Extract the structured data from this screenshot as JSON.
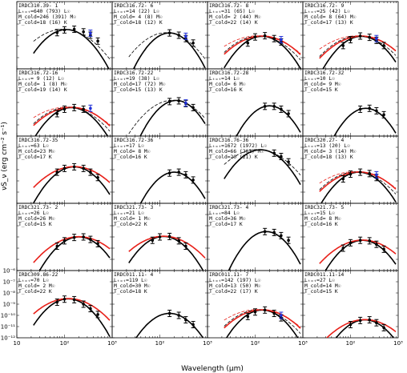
{
  "chart_data": {
    "type": "scatter",
    "layout": "panel-grid",
    "rows": 5,
    "cols": 4,
    "xlabel": "Wavelength (μm)",
    "ylabel": "νS_ν (erg cm⁻² s⁻¹)",
    "xscale": "log",
    "yscale": "log",
    "xlim": [
      10,
      1000
    ],
    "ylim": [
      1e-12,
      1e-06
    ],
    "x_tick_labels": [
      "10",
      "10²",
      "10³"
    ],
    "y_tick_labels": [
      "10⁻⁶",
      "10⁻⁷",
      "10⁻⁸",
      "10⁻⁹",
      "10⁻¹⁰",
      "10⁻¹¹",
      "10⁻¹²"
    ],
    "colors": {
      "cold_fit": "#000000",
      "total_fit": "#e8211a",
      "blue_point": "#1f2fd8",
      "data_point": "#000000"
    },
    "panels": [
      {
        "name": "IRDC310.39- 1",
        "lines": [
          "Lₜₒₜ=640 (793) L☉",
          "M_cold=246 (391) M☉",
          "T_cold=18 (16) K"
        ],
        "peak": [
          110,
          3.2e-09
        ],
        "width": 0.45,
        "red": false,
        "dashed": true,
        "points": [
          [
            70,
            1.7e-09
          ],
          [
            100,
            3e-09
          ],
          [
            160,
            3.4e-09
          ],
          [
            250,
            2e-09
          ],
          [
            350,
            1e-09
          ],
          [
            500,
            3e-10
          ]
        ],
        "blue": [
          [
            350,
            1.5e-09
          ]
        ]
      },
      {
        "name": "IRDC316.72- 6",
        "lines": [
          "Lₜₒₜ=14 (22) L☉",
          "M_cold= 4 (8) M☉",
          "T_cold=18 (12) K"
        ],
        "peak": [
          160,
          1.6e-09
        ],
        "width": 0.4,
        "red": false,
        "dashed": true,
        "points": [
          [
            160,
            1.6e-09
          ],
          [
            250,
            1e-09
          ],
          [
            350,
            5e-10
          ],
          [
            500,
            2e-10
          ]
        ],
        "blue": [
          [
            350,
            8e-10
          ]
        ]
      },
      {
        "name": "IRDC316.72- 8",
        "lines": [
          "Lₜₒₜ=31 (65) L☉",
          "M_cold= 2 (44) M☉",
          "T_cold=22 (14) K"
        ],
        "peak": [
          140,
          8e-10
        ],
        "width": 0.45,
        "red": true,
        "dashed": true,
        "points": [
          [
            70,
            2e-10
          ],
          [
            100,
            7e-10
          ],
          [
            160,
            9e-10
          ],
          [
            250,
            5e-10
          ],
          [
            350,
            2.5e-10
          ]
        ],
        "blue": [
          [
            350,
            4e-10
          ]
        ]
      },
      {
        "name": "IRDC316.72- 9",
        "lines": [
          "Lₜₒₜ=25 (42) L☉",
          "M_cold= 8 (64) M☉",
          "T_cold=17 (13) K"
        ],
        "peak": [
          170,
          8e-10
        ],
        "width": 0.45,
        "red": true,
        "dashed": true,
        "points": [
          [
            70,
            1.2e-10
          ],
          [
            100,
            4e-10
          ],
          [
            160,
            8.5e-10
          ],
          [
            250,
            6.5e-10
          ],
          [
            350,
            3.5e-10
          ],
          [
            500,
            1.2e-10
          ]
        ],
        "blue": [
          [
            350,
            5e-10
          ]
        ]
      },
      {
        "name": "IRDC316.72-16",
        "lines": [
          "Lₜₒₜ= 9 (12) L☉",
          "M_cold= 1 (8) M☉",
          "T_cold=19 (14) K"
        ],
        "peak": [
          140,
          3.5e-10
        ],
        "width": 0.45,
        "red": true,
        "dashed": true,
        "points": [
          [
            70,
            1e-10
          ],
          [
            100,
            2.5e-10
          ],
          [
            160,
            3.5e-10
          ],
          [
            250,
            2.5e-10
          ]
        ],
        "blue": [
          [
            350,
            3e-10
          ]
        ]
      },
      {
        "name": "IRDC316.72-22",
        "lines": [
          "Lₜₒₜ=19 (38) L☉",
          "M_cold=17 (72) M☉",
          "T_cold=15 (13) K"
        ],
        "peak": [
          220,
          1.5e-09
        ],
        "width": 0.4,
        "red": false,
        "dashed": true,
        "points": [
          [
            160,
            1.2e-09
          ],
          [
            250,
            1.4e-09
          ],
          [
            350,
            8e-10
          ],
          [
            500,
            3.5e-10
          ]
        ],
        "blue": [
          [
            350,
            9e-10
          ]
        ]
      },
      {
        "name": "IRDC316.72-28",
        "lines": [
          "Lₜₒₜ=14 L☉",
          "M_cold= 6 M☉",
          "T_cold=16 K"
        ],
        "peak": [
          200,
          5e-10
        ],
        "width": 0.4,
        "red": false,
        "dashed": false,
        "points": [
          [
            160,
            4.5e-10
          ],
          [
            250,
            4.5e-10
          ],
          [
            350,
            2.5e-10
          ],
          [
            500,
            1e-10
          ]
        ],
        "blue": []
      },
      {
        "name": "IRDC316.72-32",
        "lines": [
          "Lₜₒₜ=10 L☉",
          "M_cold= 9 M☉",
          "T_cold=15 K"
        ],
        "peak": [
          210,
          3e-10
        ],
        "width": 0.4,
        "red": false,
        "dashed": false,
        "points": [
          [
            160,
            2.5e-10
          ],
          [
            250,
            3e-10
          ],
          [
            350,
            1.8e-10
          ],
          [
            500,
            8e-11
          ]
        ],
        "blue": []
      },
      {
        "name": "IRDC316.72-35",
        "lines": [
          "Lₜₒₜ=63 L☉",
          "M_cold=23 M☉",
          "T_cold=17 K"
        ],
        "peak": [
          160,
          1.8e-09
        ],
        "width": 0.45,
        "red": true,
        "dashed": false,
        "points": [
          [
            70,
            6e-10
          ],
          [
            100,
            1.3e-09
          ],
          [
            160,
            1.8e-09
          ],
          [
            250,
            1.3e-09
          ],
          [
            350,
            6e-10
          ],
          [
            500,
            2e-10
          ]
        ],
        "blue": []
      },
      {
        "name": "IRDC316.72-36",
        "lines": [
          "Lₜₒₜ=17 L☉",
          "M_cold= 8 M☉",
          "T_cold=16 K"
        ],
        "peak": [
          200,
          6e-10
        ],
        "width": 0.4,
        "red": false,
        "dashed": false,
        "points": [
          [
            160,
            5e-10
          ],
          [
            250,
            6e-10
          ],
          [
            350,
            3.5e-10
          ],
          [
            500,
            1.2e-10
          ]
        ],
        "blue": []
      },
      {
        "name": "IRDC316.76-36",
        "lines": [
          "Lₜₒₜ=1672 (1972) L☉",
          "M_cold=66 (201) M☉",
          "T_cold=20 (21) K"
        ],
        "peak": [
          130,
          6e-08
        ],
        "width": 0.45,
        "red": false,
        "dashed": true,
        "points": [
          [
            250,
            3e-08
          ],
          [
            350,
            1.5e-08
          ],
          [
            500,
            5e-09
          ]
        ],
        "blue": []
      },
      {
        "name": "IRDC320.27- 4",
        "lines": [
          "Lₜₒₜ=13 (20) L☉",
          "M_cold= 3 (14) M☉",
          "T_cold=18 (13) K"
        ],
        "peak": [
          150,
          6e-10
        ],
        "width": 0.45,
        "red": true,
        "dashed": true,
        "points": [
          [
            70,
            1.5e-10
          ],
          [
            100,
            4e-10
          ],
          [
            160,
            6e-10
          ],
          [
            250,
            4.5e-10
          ],
          [
            350,
            2e-10
          ]
        ],
        "blue": [
          [
            350,
            3.5e-10
          ]
        ]
      },
      {
        "name": "IRDC321.73- 2",
        "lines": [
          "Lₜₒₜ=26 L☉",
          "M_cold=26 M☉",
          "T_cold=15 K"
        ],
        "peak": [
          200,
          1e-09
        ],
        "width": 0.45,
        "red": true,
        "dashed": false,
        "points": [
          [
            70,
            1.5e-10
          ],
          [
            100,
            4.5e-10
          ],
          [
            160,
            9e-10
          ],
          [
            250,
            1e-09
          ],
          [
            350,
            6e-10
          ],
          [
            500,
            2.5e-10
          ]
        ],
        "blue": []
      },
      {
        "name": "IRDC321.73- 3",
        "lines": [
          "Lₜₒₜ=21 L☉",
          "M_cold= 1 M☉",
          "T_cold=22 K"
        ],
        "peak": [
          120,
          1.1e-09
        ],
        "width": 0.45,
        "red": true,
        "dashed": false,
        "points": [
          [
            70,
            5e-10
          ],
          [
            100,
            1e-09
          ],
          [
            160,
            1.1e-09
          ],
          [
            250,
            4.5e-10
          ],
          [
            350,
            1.5e-10
          ]
        ],
        "blue": []
      },
      {
        "name": "IRDC321.73- 4",
        "lines": [
          "Lₜₒₜ=84 L☉",
          "M_cold=36 M☉",
          "T_cold=17 K"
        ],
        "peak": [
          170,
          3e-09
        ],
        "width": 0.4,
        "red": false,
        "dashed": false,
        "points": [
          [
            160,
            3e-09
          ],
          [
            250,
            2.5e-09
          ],
          [
            350,
            1.3e-09
          ],
          [
            500,
            5e-10
          ]
        ],
        "blue": []
      },
      {
        "name": "IRDC321.73- 5",
        "lines": [
          "Lₜₒₜ=15 L☉",
          "M_cold= 8 M☉",
          "T_cold=16 K"
        ],
        "peak": [
          180,
          5e-10
        ],
        "width": 0.45,
        "red": true,
        "dashed": false,
        "points": [
          [
            70,
            1e-10
          ],
          [
            100,
            3e-10
          ],
          [
            160,
            5e-10
          ],
          [
            250,
            4.5e-10
          ],
          [
            350,
            2.2e-10
          ],
          [
            500,
            8e-11
          ]
        ],
        "blue": []
      },
      {
        "name": "IRDC309.86-22",
        "lines": [
          "Lₜₒₜ=70 L☉",
          "M_cold= 2 M☉",
          "T_cold=22 K"
        ],
        "peak": [
          120,
          3e-09
        ],
        "width": 0.45,
        "red": true,
        "dashed": false,
        "points": [
          [
            70,
            1.5e-09
          ],
          [
            100,
            2.8e-09
          ],
          [
            160,
            2.5e-09
          ],
          [
            250,
            1e-09
          ],
          [
            350,
            4e-10
          ],
          [
            500,
            1.2e-10
          ]
        ],
        "blue": []
      },
      {
        "name": "IRDC011.11- 4",
        "lines": [
          "Lₜₒₜ=119 L☉",
          "M_cold=30 M☉",
          "T_cold=18 K"
        ],
        "peak": [
          160,
          1.5e-10
        ],
        "width": 0.45,
        "red": false,
        "dashed": false,
        "points": [
          [
            160,
            1.5e-10
          ],
          [
            250,
            1e-10
          ],
          [
            350,
            4e-11
          ],
          [
            500,
            1.5e-11
          ]
        ],
        "blue": []
      },
      {
        "name": "IRDC011.11- 7",
        "lines": [
          "Lₜₒₜ=142 (197) L☉",
          "M_cold=13 (50) M☉",
          "T_cold=22 (17) K"
        ],
        "peak": [
          140,
          3e-10
        ],
        "width": 0.45,
        "red": true,
        "dashed": true,
        "points": [
          [
            70,
            8e-11
          ],
          [
            100,
            2e-10
          ],
          [
            160,
            3e-10
          ],
          [
            250,
            1.5e-10
          ],
          [
            350,
            6e-11
          ]
        ],
        "blue": [
          [
            350,
            1e-10
          ]
        ]
      },
      {
        "name": "IRDC011.11-14",
        "lines": [
          "Lₜₒₜ=27 L☉",
          "M_cold=14 M☉",
          "T_cold=15 K"
        ],
        "peak": [
          200,
          4e-11
        ],
        "width": 0.45,
        "red": true,
        "dashed": false,
        "points": [
          [
            100,
            1.5e-11
          ],
          [
            160,
            3.5e-11
          ],
          [
            250,
            4e-11
          ],
          [
            350,
            2.2e-11
          ],
          [
            500,
            8e-12
          ]
        ],
        "blue": []
      }
    ]
  }
}
